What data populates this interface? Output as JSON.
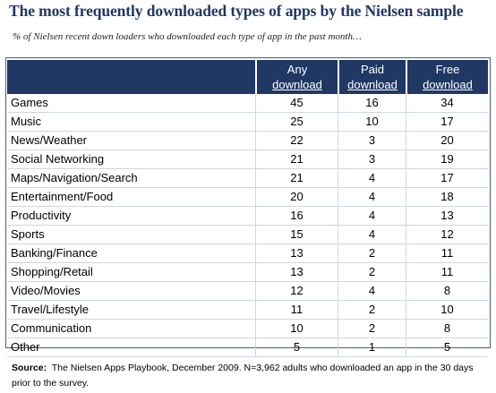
{
  "chart_data": {
    "type": "table",
    "title": "The most frequently downloaded types of apps by the Nielsen sample",
    "subtitle": "% of Nielsen recent down loaders who downloaded each type of app in the past month…",
    "columns": [
      {
        "line1": "Any",
        "line2": "download"
      },
      {
        "line1": "Paid",
        "line2": "download"
      },
      {
        "line1": "Free",
        "line2": "download"
      }
    ],
    "rows": [
      {
        "category": "Games",
        "values": [
          45,
          16,
          34
        ]
      },
      {
        "category": "Music",
        "values": [
          25,
          10,
          17
        ]
      },
      {
        "category": "News/Weather",
        "values": [
          22,
          3,
          20
        ]
      },
      {
        "category": "Social Networking",
        "values": [
          21,
          3,
          19
        ]
      },
      {
        "category": "Maps/Navigation/Search",
        "values": [
          21,
          4,
          17
        ]
      },
      {
        "category": "Entertainment/Food",
        "values": [
          20,
          4,
          18
        ]
      },
      {
        "category": "Productivity",
        "values": [
          16,
          4,
          13
        ]
      },
      {
        "category": "Sports",
        "values": [
          15,
          4,
          12
        ]
      },
      {
        "category": "Banking/Finance",
        "values": [
          13,
          2,
          11
        ]
      },
      {
        "category": "Shopping/Retail",
        "values": [
          13,
          2,
          11
        ]
      },
      {
        "category": "Video/Movies",
        "values": [
          12,
          4,
          8
        ]
      },
      {
        "category": "Travel/Lifestyle",
        "values": [
          11,
          2,
          10
        ]
      },
      {
        "category": "Communication",
        "values": [
          10,
          2,
          8
        ]
      },
      {
        "category": "Other",
        "values": [
          5,
          1,
          5
        ]
      }
    ]
  },
  "source": {
    "label": "Source:",
    "text": "The Nielsen Apps Playbook, December 2009. N=3,962 adults who downloaded an app in the 30 days prior to the survey."
  },
  "colors": {
    "header_bg": "#1f3864",
    "title": "#1f3864"
  }
}
